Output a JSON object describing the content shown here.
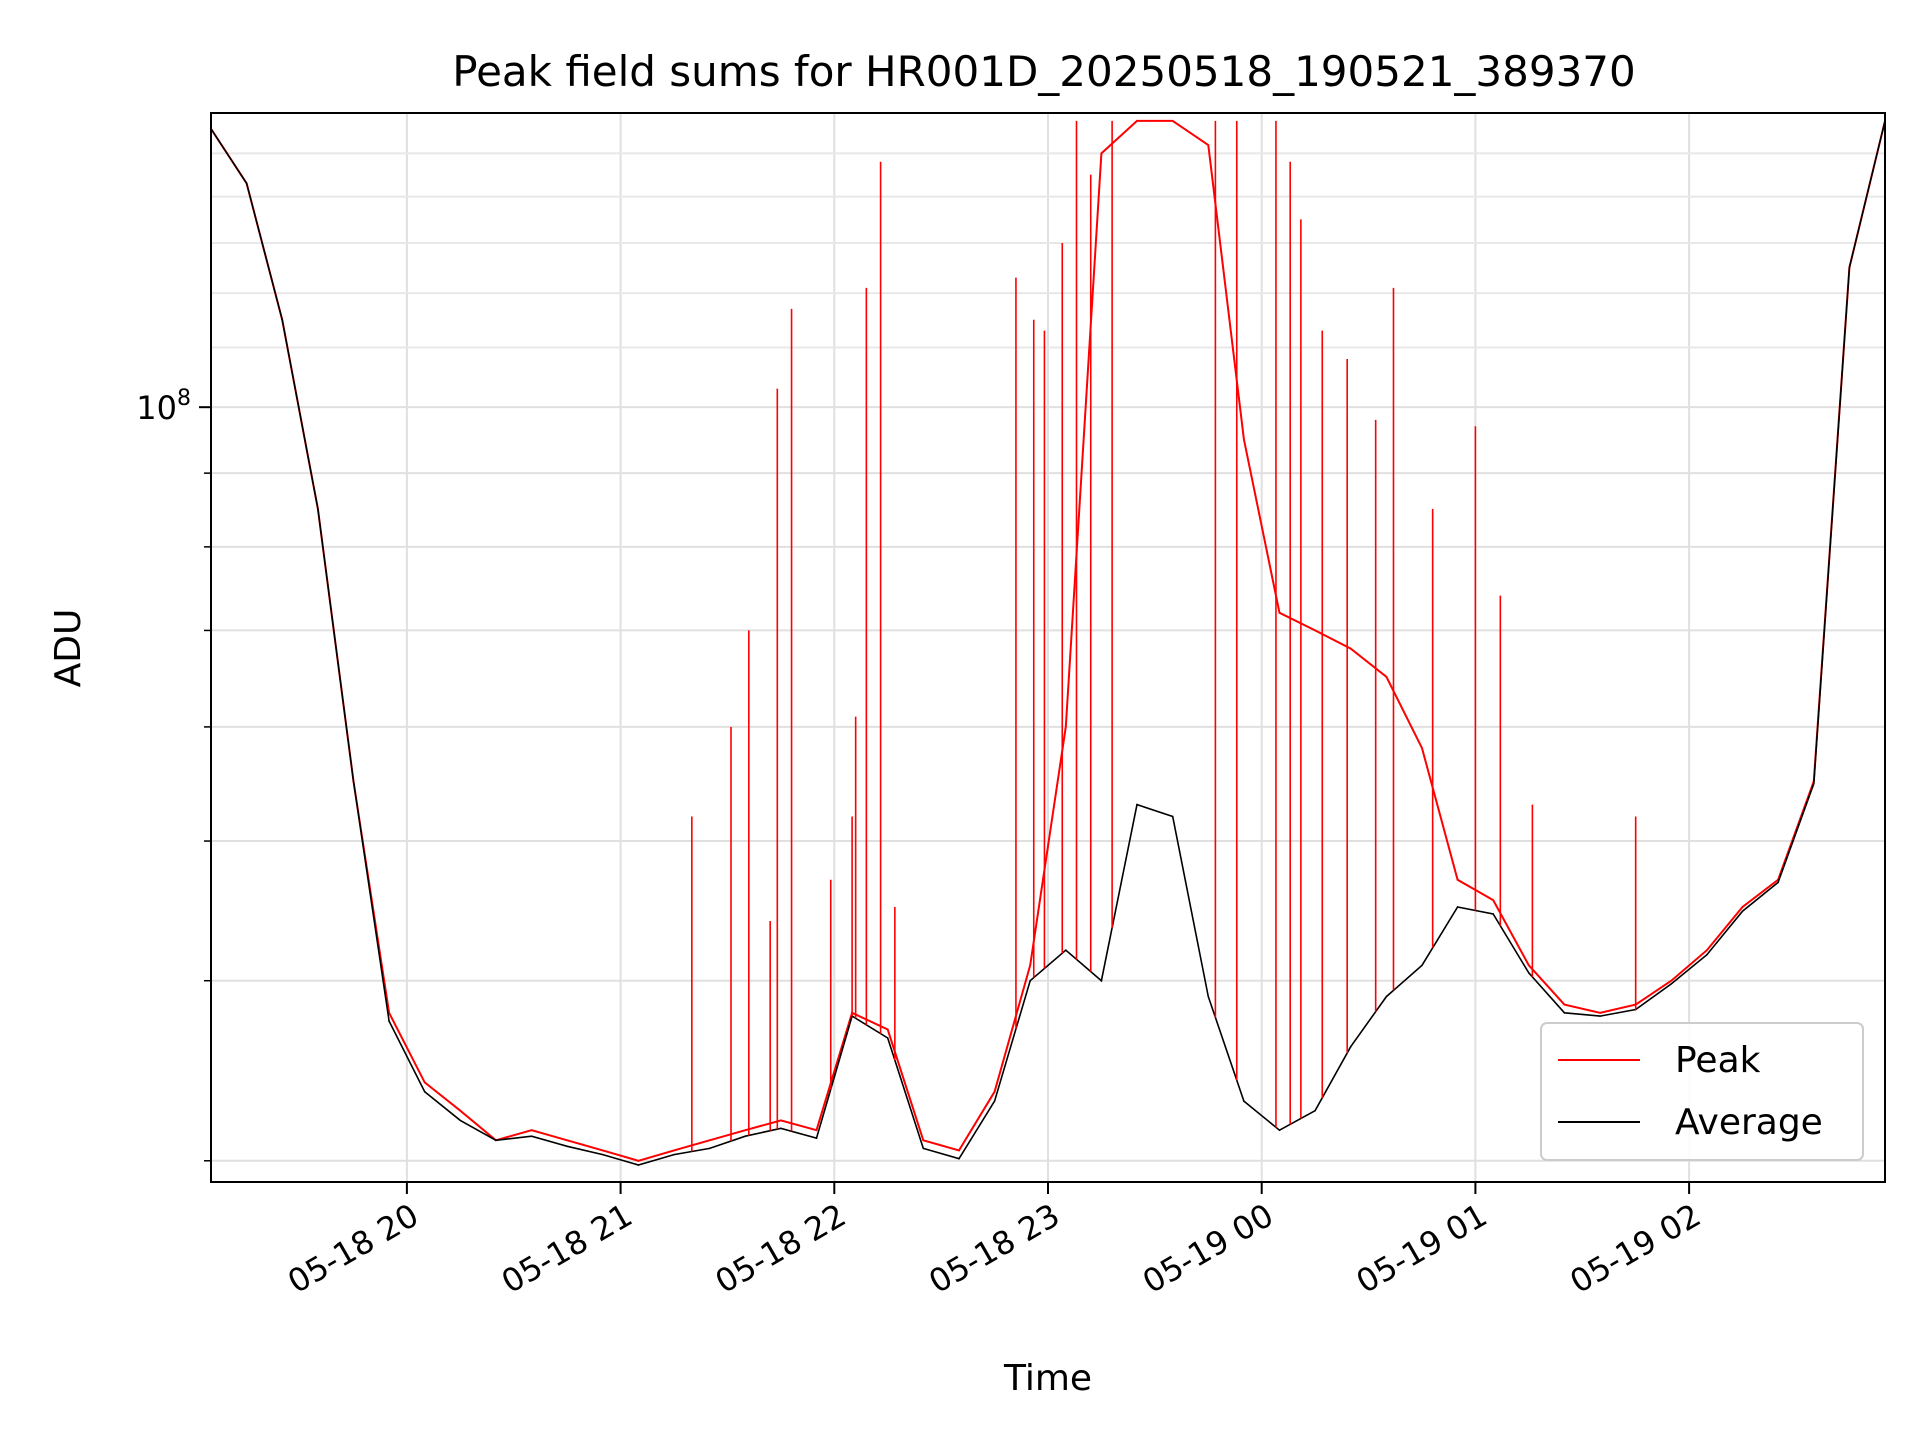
{
  "chart_data": {
    "type": "line",
    "title": "Peak field sums for HR001D_20250518_190521_389370",
    "xlabel": "Time",
    "ylabel": "ADU",
    "y_scale": "log",
    "ylim": [
      29000000,
      160000000
    ],
    "xlim": [
      "2025-05-18 19:05",
      "2025-05-19 02:55"
    ],
    "x_ticks": [
      "05-18 20",
      "05-18 21",
      "05-18 22",
      "05-18 23",
      "05-19 00",
      "05-19 01",
      "05-19 02"
    ],
    "x_tick_times": [
      "2025-05-18 20:00",
      "2025-05-18 21:00",
      "2025-05-18 22:00",
      "2025-05-18 23:00",
      "2025-05-19 00:00",
      "2025-05-19 01:00",
      "2025-05-19 02:00"
    ],
    "y_ticks": [
      {
        "label_base": "10",
        "label_exp": "8",
        "value": 100000000
      }
    ],
    "grid": true,
    "legend_position": "lower right",
    "x": [
      "2025-05-18 19:05",
      "2025-05-18 19:15",
      "2025-05-18 19:25",
      "2025-05-18 19:35",
      "2025-05-18 19:45",
      "2025-05-18 19:55",
      "2025-05-18 20:05",
      "2025-05-18 20:15",
      "2025-05-18 20:25",
      "2025-05-18 20:35",
      "2025-05-18 20:45",
      "2025-05-18 20:55",
      "2025-05-18 21:05",
      "2025-05-18 21:15",
      "2025-05-18 21:25",
      "2025-05-18 21:35",
      "2025-05-18 21:45",
      "2025-05-18 21:55",
      "2025-05-18 22:05",
      "2025-05-18 22:15",
      "2025-05-18 22:25",
      "2025-05-18 22:35",
      "2025-05-18 22:45",
      "2025-05-18 22:55",
      "2025-05-18 23:05",
      "2025-05-18 23:15",
      "2025-05-18 23:25",
      "2025-05-18 23:35",
      "2025-05-18 23:45",
      "2025-05-18 23:55",
      "2025-05-19 00:05",
      "2025-05-19 00:15",
      "2025-05-19 00:25",
      "2025-05-19 00:35",
      "2025-05-19 00:45",
      "2025-05-19 00:55",
      "2025-05-19 01:05",
      "2025-05-19 01:15",
      "2025-05-19 01:25",
      "2025-05-19 01:35",
      "2025-05-19 01:45",
      "2025-05-19 01:55",
      "2025-05-19 02:05",
      "2025-05-19 02:15",
      "2025-05-19 02:25",
      "2025-05-19 02:35",
      "2025-05-19 02:45",
      "2025-05-19 02:55"
    ],
    "series": [
      {
        "name": "Peak",
        "color": "#ff0000",
        "values": [
          156000000,
          143000000,
          115000000,
          85000000,
          55000000,
          38000000,
          34000000,
          32500000,
          31000000,
          31500000,
          31000000,
          30500000,
          30000000,
          30500000,
          31000000,
          31500000,
          32000000,
          31500000,
          38000000,
          37000000,
          31000000,
          30500000,
          33500000,
          41000000,
          60000000,
          150000000,
          158000000,
          158000000,
          152000000,
          95000000,
          72000000,
          70000000,
          68000000,
          65000000,
          58000000,
          47000000,
          45500000,
          41000000,
          38500000,
          38000000,
          38500000,
          40000000,
          42000000,
          45000000,
          47000000,
          55000000,
          125000000,
          158000000
        ]
      },
      {
        "name": "Average",
        "color": "#000000",
        "values": [
          156000000,
          143000000,
          115000000,
          85000000,
          55000000,
          37500000,
          33500000,
          32000000,
          31000000,
          31200000,
          30700000,
          30300000,
          29800000,
          30300000,
          30600000,
          31200000,
          31600000,
          31100000,
          37800000,
          36500000,
          30600000,
          30100000,
          33000000,
          40000000,
          42000000,
          40000000,
          53000000,
          52000000,
          39000000,
          33000000,
          31500000,
          32500000,
          36000000,
          39000000,
          41000000,
          45000000,
          44500000,
          40500000,
          38000000,
          37800000,
          38200000,
          39800000,
          41700000,
          44700000,
          46800000,
          54800000,
          125000000,
          158000000
        ]
      }
    ],
    "spikes": [
      {
        "time": "2025-05-18 21:20",
        "value": 52000000
      },
      {
        "time": "2025-05-18 21:31",
        "value": 60000000
      },
      {
        "time": "2025-05-18 21:36",
        "value": 70000000
      },
      {
        "time": "2025-05-18 21:42",
        "value": 44000000
      },
      {
        "time": "2025-05-18 21:44",
        "value": 103000000
      },
      {
        "time": "2025-05-18 21:48",
        "value": 117000000
      },
      {
        "time": "2025-05-18 21:59",
        "value": 47000000
      },
      {
        "time": "2025-05-18 22:05",
        "value": 52000000
      },
      {
        "time": "2025-05-18 22:06",
        "value": 61000000
      },
      {
        "time": "2025-05-18 22:09",
        "value": 121000000
      },
      {
        "time": "2025-05-18 22:13",
        "value": 148000000
      },
      {
        "time": "2025-05-18 22:17",
        "value": 45000000
      },
      {
        "time": "2025-05-18 22:51",
        "value": 123000000
      },
      {
        "time": "2025-05-18 22:56",
        "value": 115000000
      },
      {
        "time": "2025-05-18 22:59",
        "value": 113000000
      },
      {
        "time": "2025-05-18 23:04",
        "value": 130000000
      },
      {
        "time": "2025-05-18 23:08",
        "value": 158000000
      },
      {
        "time": "2025-05-18 23:12",
        "value": 145000000
      },
      {
        "time": "2025-05-18 23:18",
        "value": 158000000
      },
      {
        "time": "2025-05-18 23:47",
        "value": 158000000
      },
      {
        "time": "2025-05-18 23:53",
        "value": 158000000
      },
      {
        "time": "2025-05-19 00:04",
        "value": 158000000
      },
      {
        "time": "2025-05-19 00:08",
        "value": 148000000
      },
      {
        "time": "2025-05-19 00:11",
        "value": 135000000
      },
      {
        "time": "2025-05-19 00:17",
        "value": 113000000
      },
      {
        "time": "2025-05-19 00:24",
        "value": 108000000
      },
      {
        "time": "2025-05-19 00:32",
        "value": 98000000
      },
      {
        "time": "2025-05-19 00:37",
        "value": 121000000
      },
      {
        "time": "2025-05-19 00:48",
        "value": 85000000
      },
      {
        "time": "2025-05-19 01:00",
        "value": 97000000
      },
      {
        "time": "2025-05-19 01:07",
        "value": 74000000
      },
      {
        "time": "2025-05-19 01:16",
        "value": 53000000
      },
      {
        "time": "2025-05-19 01:45",
        "value": 52000000
      }
    ]
  }
}
